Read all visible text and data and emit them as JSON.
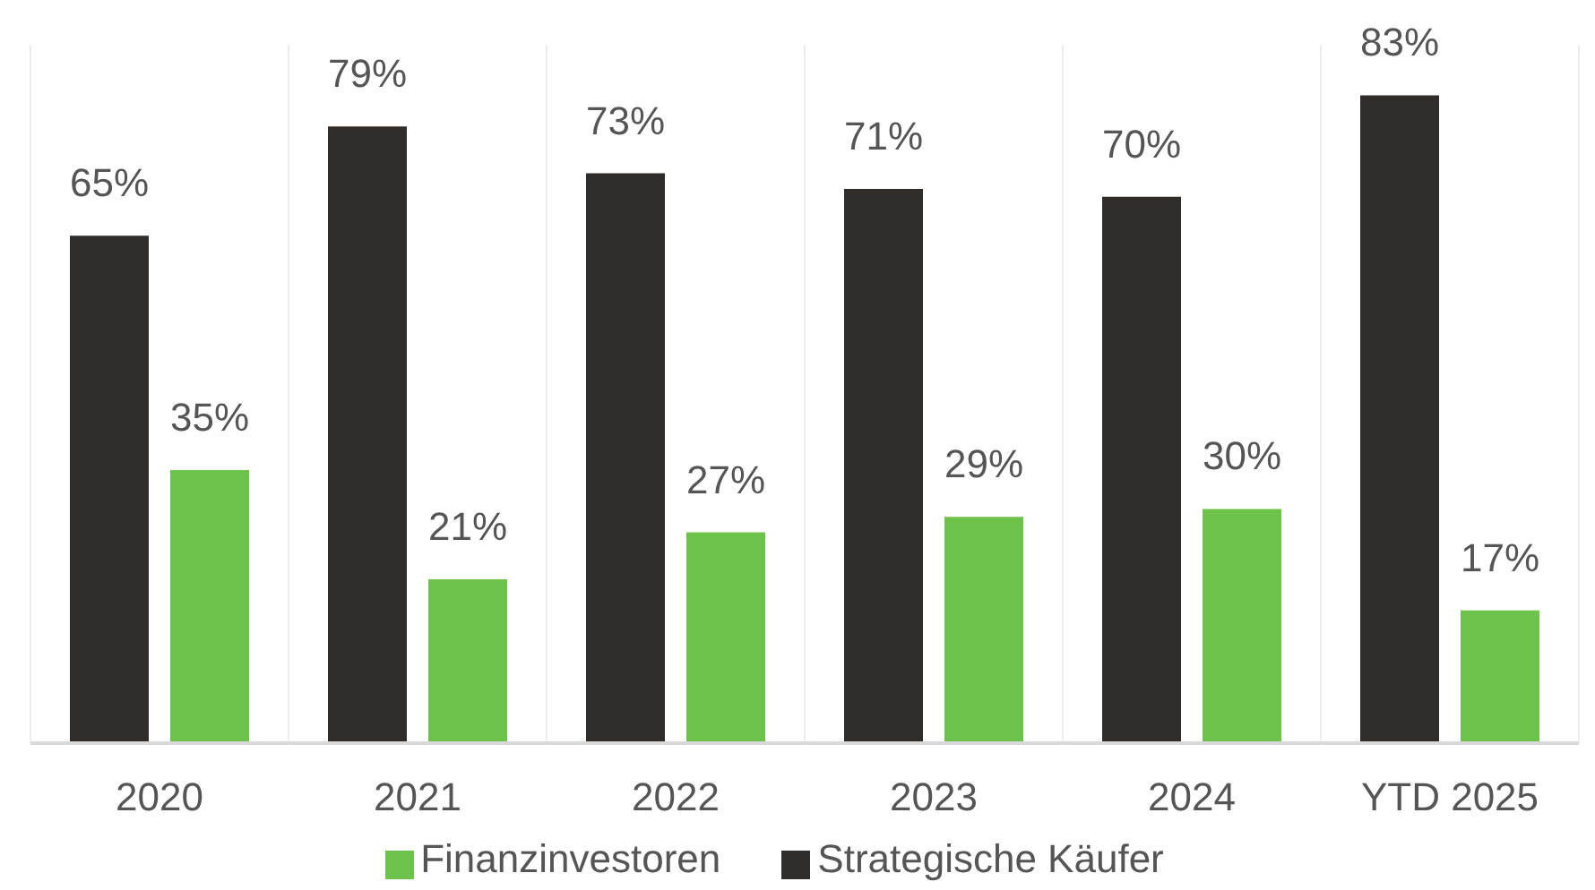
{
  "chart_data": {
    "type": "bar",
    "categories": [
      "2020",
      "2021",
      "2022",
      "2023",
      "2024",
      "YTD 2025"
    ],
    "series": [
      {
        "name": "Strategische Käufer",
        "color": "#302c29",
        "values": [
          65,
          79,
          73,
          71,
          70,
          83
        ],
        "value_labels": [
          "65%",
          "79%",
          "73%",
          "71%",
          "70%",
          "83%"
        ]
      },
      {
        "name": "Finanzinvestoren",
        "color": "#6cc24a",
        "values": [
          35,
          21,
          27,
          29,
          30,
          17
        ],
        "value_labels": [
          "35%",
          "21%",
          "27%",
          "29%",
          "30%",
          "17%"
        ]
      }
    ],
    "grid": "x",
    "legend": "bottom"
  }
}
